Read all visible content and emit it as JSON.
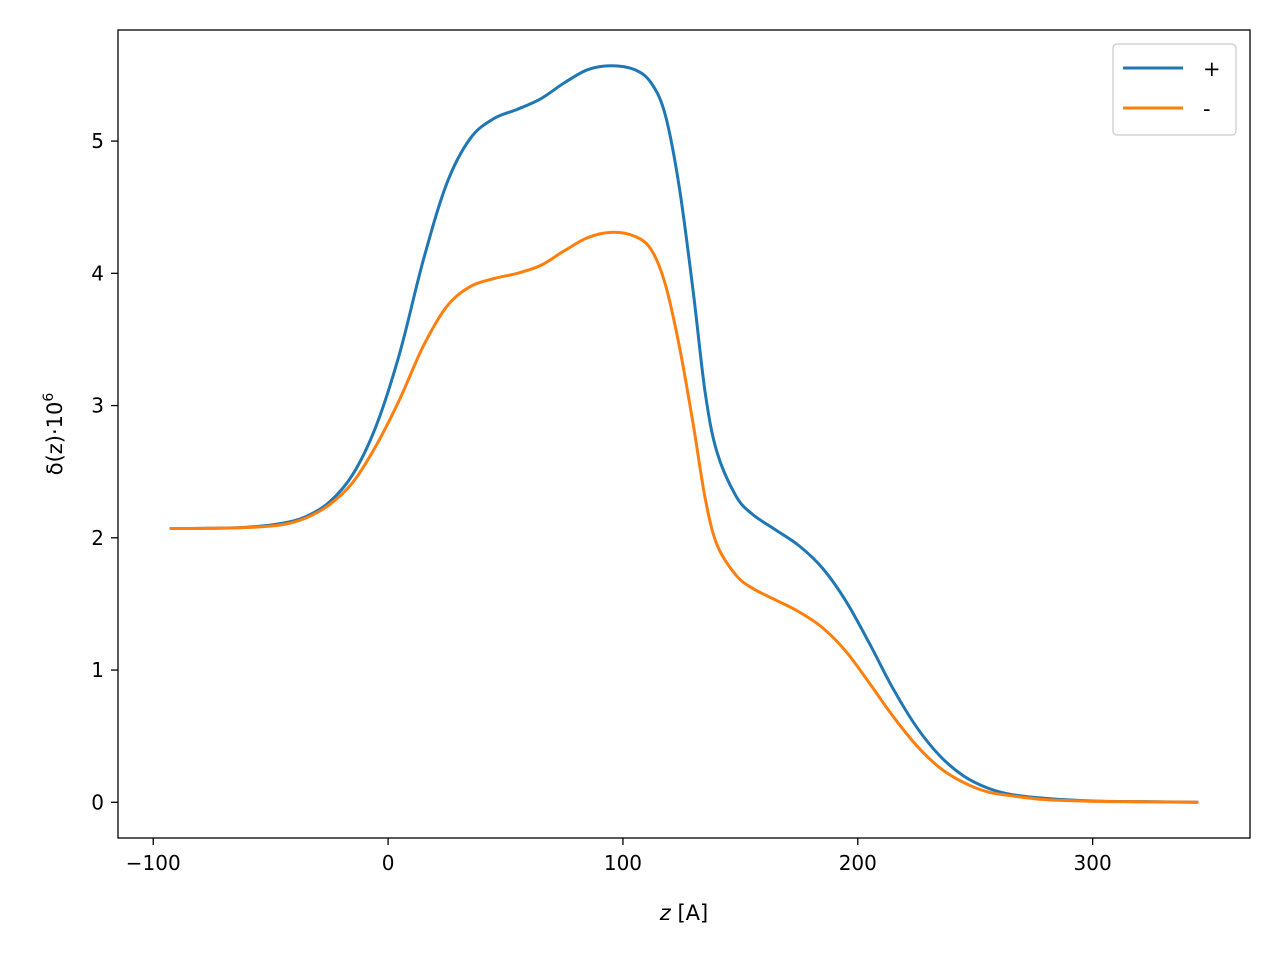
{
  "chart_data": {
    "type": "line",
    "xlabel_var": "z",
    "xlabel_unit": " [A]",
    "ylabel_func": "δ(z)·10",
    "ylabel_exp": "6",
    "xlim": [
      -115,
      367
    ],
    "ylim": [
      -0.27,
      5.84
    ],
    "x_ticks": [
      -100,
      0,
      100,
      200,
      300
    ],
    "x_tick_labels": [
      "−100",
      "0",
      "100",
      "200",
      "300"
    ],
    "y_ticks": [
      0,
      1,
      2,
      3,
      4,
      5
    ],
    "y_tick_labels": [
      "0",
      "1",
      "2",
      "3",
      "4",
      "5"
    ],
    "grid": false,
    "legend_position": "top-right",
    "series": [
      {
        "name": "+",
        "color": "#1f77b4",
        "points": [
          [
            -93,
            2.07
          ],
          [
            -80,
            2.071
          ],
          [
            -60,
            2.08
          ],
          [
            -45,
            2.11
          ],
          [
            -35,
            2.16
          ],
          [
            -25,
            2.27
          ],
          [
            -15,
            2.48
          ],
          [
            -5,
            2.85
          ],
          [
            5,
            3.4
          ],
          [
            15,
            4.1
          ],
          [
            25,
            4.68
          ],
          [
            35,
            5.02
          ],
          [
            45,
            5.17
          ],
          [
            55,
            5.24
          ],
          [
            65,
            5.32
          ],
          [
            75,
            5.44
          ],
          [
            85,
            5.54
          ],
          [
            95,
            5.57
          ],
          [
            105,
            5.54
          ],
          [
            112,
            5.44
          ],
          [
            118,
            5.2
          ],
          [
            124,
            4.65
          ],
          [
            130,
            3.85
          ],
          [
            135,
            3.1
          ],
          [
            140,
            2.65
          ],
          [
            148,
            2.32
          ],
          [
            155,
            2.18
          ],
          [
            165,
            2.06
          ],
          [
            175,
            1.94
          ],
          [
            185,
            1.77
          ],
          [
            195,
            1.52
          ],
          [
            205,
            1.2
          ],
          [
            215,
            0.86
          ],
          [
            225,
            0.57
          ],
          [
            235,
            0.35
          ],
          [
            245,
            0.2
          ],
          [
            255,
            0.11
          ],
          [
            265,
            0.06
          ],
          [
            280,
            0.03
          ],
          [
            300,
            0.01
          ],
          [
            320,
            0.005
          ],
          [
            345,
            0.0
          ]
        ]
      },
      {
        "name": "-",
        "color": "#ff7f0e",
        "points": [
          [
            -93,
            2.07
          ],
          [
            -80,
            2.071
          ],
          [
            -60,
            2.078
          ],
          [
            -45,
            2.1
          ],
          [
            -35,
            2.15
          ],
          [
            -25,
            2.25
          ],
          [
            -15,
            2.42
          ],
          [
            -5,
            2.7
          ],
          [
            5,
            3.05
          ],
          [
            15,
            3.45
          ],
          [
            25,
            3.75
          ],
          [
            35,
            3.9
          ],
          [
            45,
            3.96
          ],
          [
            55,
            4.0
          ],
          [
            65,
            4.06
          ],
          [
            75,
            4.17
          ],
          [
            85,
            4.27
          ],
          [
            95,
            4.31
          ],
          [
            105,
            4.28
          ],
          [
            112,
            4.18
          ],
          [
            118,
            3.92
          ],
          [
            124,
            3.45
          ],
          [
            130,
            2.85
          ],
          [
            135,
            2.3
          ],
          [
            140,
            1.95
          ],
          [
            148,
            1.72
          ],
          [
            155,
            1.62
          ],
          [
            165,
            1.53
          ],
          [
            175,
            1.44
          ],
          [
            185,
            1.32
          ],
          [
            195,
            1.14
          ],
          [
            205,
            0.9
          ],
          [
            215,
            0.65
          ],
          [
            225,
            0.43
          ],
          [
            235,
            0.26
          ],
          [
            245,
            0.15
          ],
          [
            255,
            0.08
          ],
          [
            265,
            0.05
          ],
          [
            280,
            0.02
          ],
          [
            300,
            0.008
          ],
          [
            320,
            0.004
          ],
          [
            345,
            0.0
          ]
        ]
      }
    ]
  }
}
